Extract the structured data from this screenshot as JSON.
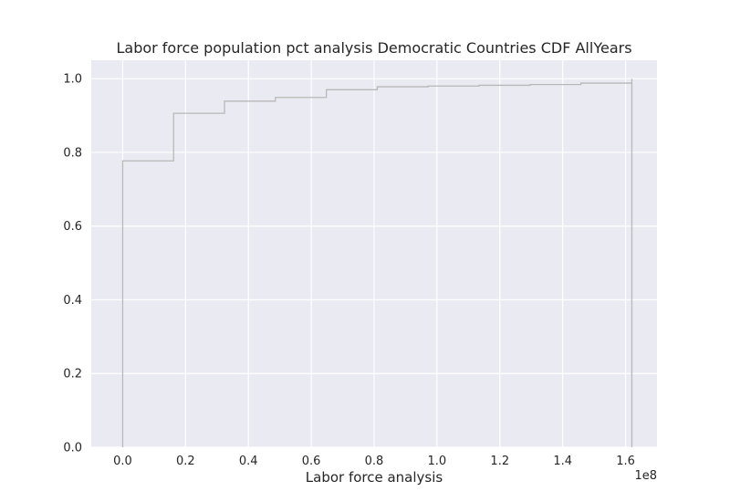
{
  "chart_data": {
    "type": "line",
    "drawstyle": "step",
    "title": "Labor force population pct analysis Democratic Countries CDF AllYears",
    "xlabel": "Labor force analysis",
    "ylabel": "",
    "x_offset_text": "1e8",
    "xlim": [
      -0.1,
      1.7
    ],
    "ylim": [
      0.0,
      1.05
    ],
    "xticks": [
      0.0,
      0.2,
      0.4,
      0.6,
      0.8,
      1.0,
      1.2,
      1.4,
      1.6
    ],
    "xtick_labels": [
      "0.0",
      "0.2",
      "0.4",
      "0.6",
      "0.8",
      "1.0",
      "1.2",
      "1.4",
      "1.6"
    ],
    "yticks": [
      0.0,
      0.2,
      0.4,
      0.6,
      0.8,
      1.0
    ],
    "ytick_labels": [
      "0.0",
      "0.2",
      "0.4",
      "0.6",
      "0.8",
      "1.0"
    ],
    "grid": true,
    "legend": null,
    "colors": {
      "background": "#eaeaf2",
      "grid": "#ffffff",
      "line": "#b8b8b8",
      "text": "#262626"
    },
    "series": [
      {
        "x": [
          0.0,
          0.0,
          0.162,
          0.324,
          0.486,
          0.648,
          0.81,
          0.972,
          1.134,
          1.296,
          1.458,
          1.62,
          1.62
        ],
        "y": [
          0.0,
          0.777,
          0.906,
          0.939,
          0.949,
          0.97,
          0.978,
          0.98,
          0.982,
          0.984,
          0.988,
          1.0,
          0.0
        ]
      }
    ]
  }
}
